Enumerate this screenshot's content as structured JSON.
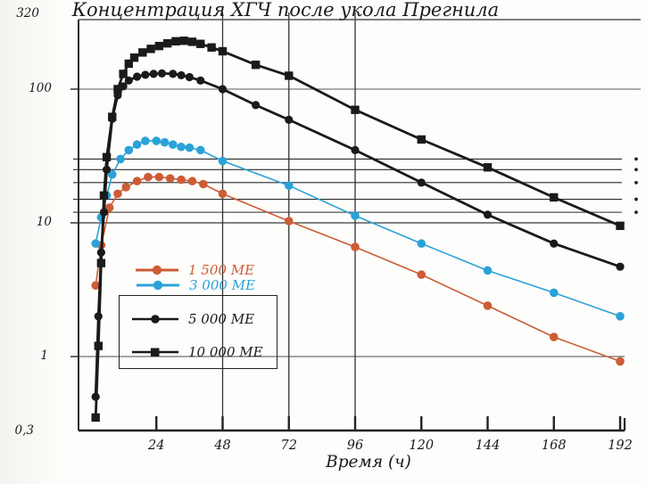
{
  "title": "Концентрация ХГЧ после укола Прегнила",
  "x_axis": {
    "label": "Время (ч)",
    "ticks": [
      24,
      48,
      72,
      96,
      120,
      144,
      168,
      192
    ]
  },
  "y_axis": {
    "scale": "log",
    "ticks": [
      "320",
      "100",
      "10",
      "1",
      "0,3"
    ],
    "tick_values": [
      320,
      100,
      10,
      1,
      0.3
    ]
  },
  "gridlines": {
    "vertical_at_hours": [
      48,
      72,
      96
    ],
    "horizontal_major": [
      100,
      10,
      1
    ],
    "horizontal_minor": [
      30,
      25,
      20,
      15,
      12
    ],
    "right_edge_dots_at": [
      30,
      25,
      20,
      15,
      12
    ]
  },
  "colors": {
    "series_1500": "#cc5c36",
    "series_3000": "#2aa2d8",
    "series_black": "#1a1a1a",
    "grid": "#333333",
    "axis": "#222222"
  },
  "legend": [
    {
      "label": "1 500 МЕ",
      "color": "#cc5c36",
      "text_color": "#cc5c36",
      "marker": "circle",
      "boxed": false
    },
    {
      "label": "3 000 МЕ",
      "color": "#2aa2d8",
      "text_color": "#2aa2d8",
      "marker": "circle",
      "boxed": false
    },
    {
      "label": "5 000 МЕ",
      "color": "#1a1a1a",
      "text_color": "#1a1a1a",
      "marker": "circle",
      "boxed": true
    },
    {
      "label": "10 000 МЕ",
      "color": "#1a1a1a",
      "text_color": "#1a1a1a",
      "marker": "square",
      "boxed": true
    }
  ],
  "chart_data": {
    "type": "line",
    "title": "Концентрация ХГЧ после укола Прегнила",
    "xlabel": "Время (ч)",
    "ylabel": "",
    "x_unit": "hours",
    "xlim": [
      0,
      196
    ],
    "ylim": [
      0.3,
      320
    ],
    "y_scale": "log",
    "legend_position": "inside-left",
    "grid": true,
    "series": [
      {
        "name": "1 500 МЕ",
        "color": "#cc5c36",
        "marker": "circle",
        "points": [
          [
            2,
            3.4
          ],
          [
            4,
            6.8
          ],
          [
            7,
            13
          ],
          [
            10,
            16.5
          ],
          [
            13,
            18.5
          ],
          [
            17,
            20.5
          ],
          [
            21,
            22
          ],
          [
            25,
            22
          ],
          [
            29,
            21.5
          ],
          [
            33,
            21
          ],
          [
            37,
            20.5
          ],
          [
            41,
            19.5
          ],
          [
            48,
            16.5
          ],
          [
            72,
            10.3
          ],
          [
            96,
            6.6
          ],
          [
            120,
            4.1
          ],
          [
            144,
            2.4
          ],
          [
            168,
            1.4
          ],
          [
            192,
            0.92
          ]
        ]
      },
      {
        "name": "3 000 МЕ",
        "color": "#2aa2d8",
        "marker": "circle",
        "points": [
          [
            2,
            7
          ],
          [
            4,
            11
          ],
          [
            6,
            16
          ],
          [
            8,
            23
          ],
          [
            11,
            30
          ],
          [
            14,
            35
          ],
          [
            17,
            38.5
          ],
          [
            20,
            41
          ],
          [
            24,
            41
          ],
          [
            27,
            40
          ],
          [
            30,
            38.5
          ],
          [
            33,
            37
          ],
          [
            36,
            36.5
          ],
          [
            40,
            35
          ],
          [
            48,
            29
          ],
          [
            72,
            19
          ],
          [
            96,
            11.3
          ],
          [
            120,
            7
          ],
          [
            144,
            4.4
          ],
          [
            168,
            3
          ],
          [
            192,
            2
          ]
        ]
      },
      {
        "name": "5 000 МЕ",
        "color": "#1a1a1a",
        "marker": "circle",
        "points": [
          [
            2,
            0.5
          ],
          [
            3,
            2
          ],
          [
            4,
            6
          ],
          [
            5,
            12
          ],
          [
            6,
            25
          ],
          [
            8,
            60
          ],
          [
            10,
            90
          ],
          [
            12,
            105
          ],
          [
            14,
            116
          ],
          [
            17,
            124
          ],
          [
            20,
            128
          ],
          [
            23,
            130
          ],
          [
            26,
            131
          ],
          [
            30,
            130
          ],
          [
            33,
            127
          ],
          [
            36,
            123
          ],
          [
            40,
            116
          ],
          [
            48,
            100
          ],
          [
            60,
            76
          ],
          [
            72,
            59
          ],
          [
            96,
            35
          ],
          [
            120,
            20
          ],
          [
            144,
            11.5
          ],
          [
            168,
            7
          ],
          [
            192,
            4.7
          ]
        ]
      },
      {
        "name": "10 000 МЕ",
        "color": "#1a1a1a",
        "marker": "square",
        "points": [
          [
            2,
            0.35
          ],
          [
            3,
            1.2
          ],
          [
            4,
            5
          ],
          [
            5,
            16
          ],
          [
            6,
            31
          ],
          [
            8,
            62
          ],
          [
            10,
            100
          ],
          [
            12,
            130
          ],
          [
            14,
            155
          ],
          [
            16,
            172
          ],
          [
            19,
            188
          ],
          [
            22,
            200
          ],
          [
            25,
            210
          ],
          [
            28,
            220
          ],
          [
            31,
            228
          ],
          [
            34,
            230
          ],
          [
            37,
            226
          ],
          [
            40,
            218
          ],
          [
            44,
            205
          ],
          [
            48,
            192
          ],
          [
            60,
            152
          ],
          [
            72,
            126
          ],
          [
            96,
            70
          ],
          [
            120,
            42
          ],
          [
            144,
            26
          ],
          [
            168,
            15.5
          ],
          [
            192,
            9.5
          ]
        ]
      }
    ]
  }
}
